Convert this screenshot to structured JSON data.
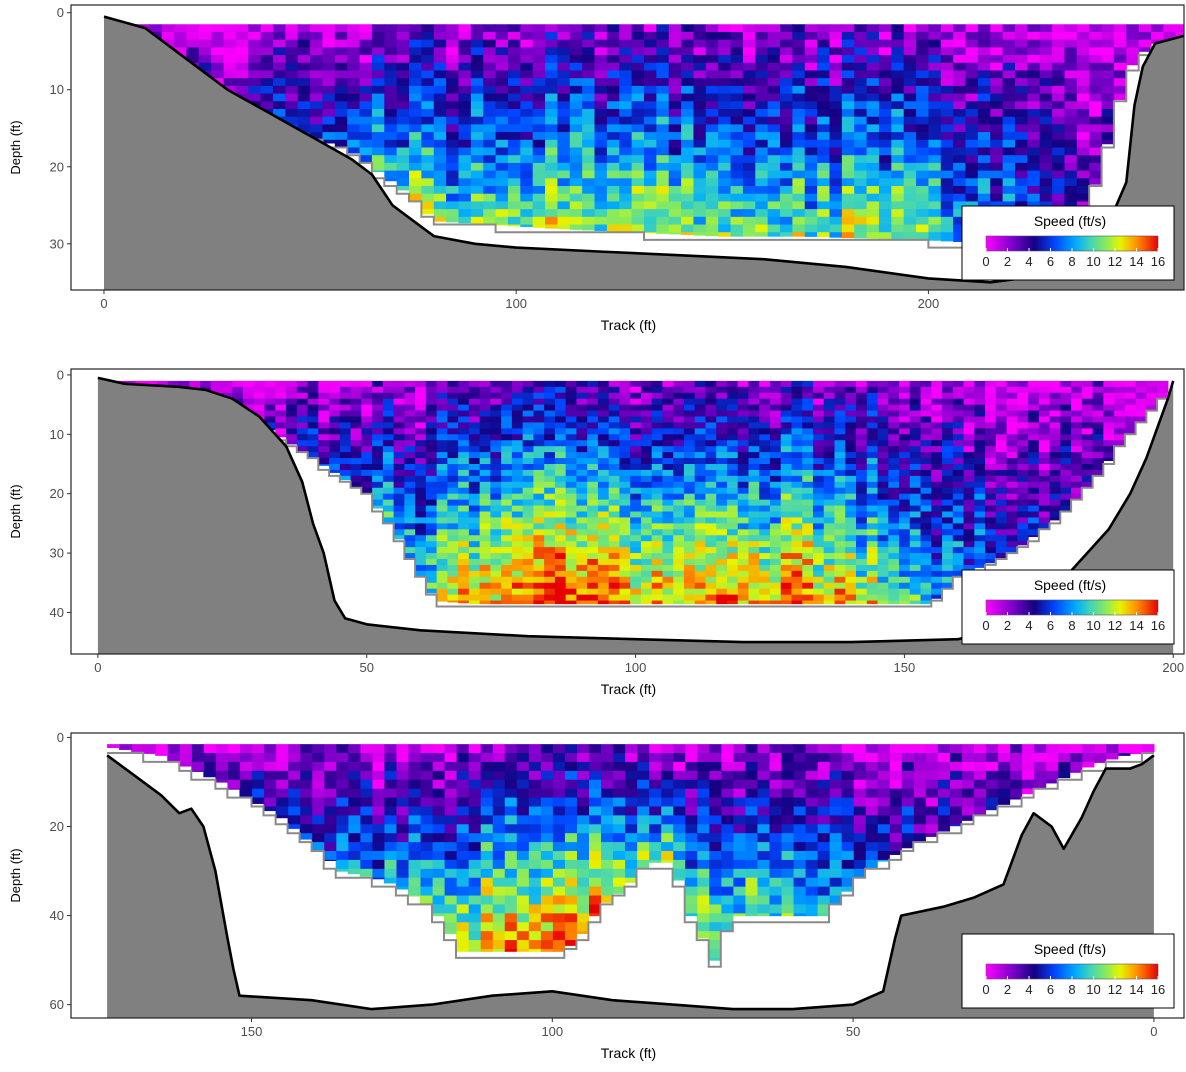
{
  "chart_data": [
    {
      "type": "heatmap",
      "xlabel": "Track (ft)",
      "ylabel": "Depth (ft)",
      "xlim": [
        -8,
        262
      ],
      "ylim": [
        36,
        -1
      ],
      "xticks": [
        0,
        100,
        200
      ],
      "yticks": [
        0,
        10,
        20,
        30
      ],
      "x_reversed": false,
      "legend": {
        "title": "Speed (ft/s)",
        "ticks": [
          0,
          2,
          4,
          6,
          8,
          10,
          12,
          14,
          16
        ],
        "tick_labels": [
          "0",
          "2",
          "4",
          "6",
          "8",
          "10",
          "12",
          "14",
          "16"
        ],
        "placement": "bottom-right"
      },
      "bed_profile": [
        [
          0,
          0.5
        ],
        [
          10,
          2
        ],
        [
          20,
          6
        ],
        [
          30,
          10
        ],
        [
          40,
          13
        ],
        [
          50,
          16
        ],
        [
          60,
          19
        ],
        [
          65,
          21
        ],
        [
          70,
          25
        ],
        [
          75,
          27
        ],
        [
          80,
          29
        ],
        [
          90,
          30
        ],
        [
          100,
          30.5
        ],
        [
          120,
          31
        ],
        [
          140,
          31.5
        ],
        [
          160,
          32
        ],
        [
          180,
          33
        ],
        [
          200,
          34.5
        ],
        [
          215,
          35
        ],
        [
          230,
          34
        ],
        [
          240,
          32
        ],
        [
          248,
          22
        ],
        [
          250,
          12
        ],
        [
          252,
          7
        ],
        [
          255,
          4
        ],
        [
          262,
          3
        ],
        [
          270,
          2
        ],
        [
          274,
          1.5
        ]
      ],
      "velocity_cells": {
        "cell_width_ft": 3,
        "cell_height_ft": 1,
        "x_range": [
          2,
          272
        ],
        "top_depth_ft": 1.5,
        "bottom_profile": [
          [
            0,
            1.5
          ],
          [
            10,
            3
          ],
          [
            20,
            7
          ],
          [
            30,
            11
          ],
          [
            40,
            14
          ],
          [
            50,
            16
          ],
          [
            60,
            18
          ],
          [
            65,
            20
          ],
          [
            70,
            22
          ],
          [
            75,
            24
          ],
          [
            80,
            27
          ],
          [
            95,
            27.5
          ],
          [
            110,
            28
          ],
          [
            150,
            29
          ],
          [
            170,
            29
          ],
          [
            200,
            29.5
          ],
          [
            220,
            30
          ],
          [
            230,
            28
          ],
          [
            238,
            26
          ],
          [
            242,
            20
          ],
          [
            246,
            12
          ],
          [
            250,
            6
          ],
          [
            255,
            4
          ],
          [
            265,
            3
          ],
          [
            272,
            2
          ]
        ],
        "speed_profile": [
          [
            0,
            0.5
          ],
          [
            10,
            0.8
          ],
          [
            20,
            1.2
          ],
          [
            30,
            2
          ],
          [
            40,
            3
          ],
          [
            50,
            4
          ],
          [
            60,
            5
          ],
          [
            70,
            6
          ],
          [
            80,
            6.5
          ],
          [
            90,
            6.5
          ],
          [
            100,
            6.8
          ],
          [
            110,
            6.8
          ],
          [
            130,
            7
          ],
          [
            150,
            6.8
          ],
          [
            170,
            6.5
          ],
          [
            190,
            7
          ],
          [
            200,
            6.5
          ],
          [
            210,
            5.5
          ],
          [
            220,
            4.5
          ],
          [
            230,
            3.5
          ],
          [
            240,
            2.5
          ],
          [
            250,
            1.5
          ],
          [
            260,
            1
          ],
          [
            272,
            0.5
          ]
        ],
        "depth_gain": 1.3
      }
    },
    {
      "type": "heatmap",
      "xlabel": "Track (ft)",
      "ylabel": "Depth (ft)",
      "xlim": [
        -5,
        202
      ],
      "ylim": [
        47,
        -1
      ],
      "xticks": [
        0,
        50,
        100,
        150,
        200
      ],
      "yticks": [
        0,
        10,
        20,
        30,
        40
      ],
      "x_reversed": false,
      "legend": {
        "title": "Speed (ft/s)",
        "ticks": [
          0,
          2,
          4,
          6,
          8,
          10,
          12,
          14,
          16
        ],
        "tick_labels": [
          "0",
          "2",
          "4",
          "6",
          "8",
          "10",
          "12",
          "14",
          "16"
        ],
        "placement": "bottom-right"
      },
      "bed_profile": [
        [
          0,
          0.5
        ],
        [
          5,
          1.5
        ],
        [
          15,
          2
        ],
        [
          20,
          2.5
        ],
        [
          25,
          4
        ],
        [
          30,
          7
        ],
        [
          35,
          12
        ],
        [
          38,
          18
        ],
        [
          40,
          25
        ],
        [
          42,
          30
        ],
        [
          44,
          38
        ],
        [
          46,
          41
        ],
        [
          50,
          42
        ],
        [
          60,
          43
        ],
        [
          80,
          44
        ],
        [
          100,
          44.5
        ],
        [
          120,
          45
        ],
        [
          140,
          45
        ],
        [
          160,
          44.5
        ],
        [
          170,
          42
        ],
        [
          180,
          34
        ],
        [
          185,
          29
        ],
        [
          188,
          26
        ],
        [
          192,
          20
        ],
        [
          195,
          14
        ],
        [
          197,
          9
        ],
        [
          199,
          4
        ],
        [
          200,
          1
        ]
      ],
      "velocity_cells": {
        "cell_width_ft": 2,
        "cell_height_ft": 1,
        "x_range": [
          1,
          199
        ],
        "top_depth_ft": 1,
        "bottom_profile": [
          [
            0,
            1
          ],
          [
            15,
            2.5
          ],
          [
            20,
            3.5
          ],
          [
            30,
            8
          ],
          [
            40,
            14
          ],
          [
            50,
            20
          ],
          [
            55,
            26
          ],
          [
            60,
            34
          ],
          [
            63,
            38
          ],
          [
            70,
            38.5
          ],
          [
            100,
            38.5
          ],
          [
            130,
            38.5
          ],
          [
            155,
            38.5
          ],
          [
            160,
            34
          ],
          [
            170,
            30
          ],
          [
            180,
            23
          ],
          [
            185,
            18
          ],
          [
            190,
            12
          ],
          [
            195,
            7
          ],
          [
            199,
            3
          ]
        ],
        "speed_profile": [
          [
            0,
            0.5
          ],
          [
            10,
            0.8
          ],
          [
            20,
            1.2
          ],
          [
            30,
            1.8
          ],
          [
            40,
            2.5
          ],
          [
            50,
            4
          ],
          [
            60,
            5.5
          ],
          [
            70,
            7
          ],
          [
            80,
            8
          ],
          [
            90,
            8.5
          ],
          [
            100,
            8
          ],
          [
            110,
            7.5
          ],
          [
            120,
            7.5
          ],
          [
            130,
            8
          ],
          [
            140,
            7
          ],
          [
            150,
            5.5
          ],
          [
            160,
            4
          ],
          [
            170,
            3
          ],
          [
            180,
            2
          ],
          [
            190,
            1.2
          ],
          [
            199,
            0.5
          ]
        ],
        "depth_gain": 1.5
      }
    },
    {
      "type": "heatmap",
      "xlabel": "Track (ft)",
      "ylabel": "Depth (ft)",
      "xlim": [
        180,
        -5
      ],
      "ylim": [
        63,
        -1
      ],
      "xticks": [
        150,
        100,
        50,
        0
      ],
      "yticks": [
        0,
        20,
        40,
        60
      ],
      "x_reversed": true,
      "legend": {
        "title": "Speed (ft/s)",
        "ticks": [
          0,
          2,
          4,
          6,
          8,
          10,
          12,
          14,
          16
        ],
        "tick_labels": [
          "0",
          "2",
          "4",
          "6",
          "8",
          "10",
          "12",
          "14",
          "16"
        ],
        "placement": "bottom-right"
      },
      "bed_profile": [
        [
          174,
          4
        ],
        [
          170,
          8
        ],
        [
          165,
          13
        ],
        [
          162,
          17
        ],
        [
          160,
          16
        ],
        [
          158,
          20
        ],
        [
          156,
          30
        ],
        [
          154,
          45
        ],
        [
          153,
          52
        ],
        [
          152,
          58
        ],
        [
          140,
          59
        ],
        [
          130,
          61
        ],
        [
          120,
          60
        ],
        [
          110,
          58
        ],
        [
          100,
          57
        ],
        [
          90,
          59
        ],
        [
          80,
          60
        ],
        [
          70,
          61
        ],
        [
          60,
          61
        ],
        [
          50,
          60
        ],
        [
          45,
          57
        ],
        [
          43,
          45
        ],
        [
          42,
          40
        ],
        [
          35,
          38
        ],
        [
          30,
          36
        ],
        [
          25,
          33
        ],
        [
          22,
          22
        ],
        [
          20,
          17
        ],
        [
          17,
          20
        ],
        [
          15,
          25
        ],
        [
          12,
          18
        ],
        [
          10,
          12
        ],
        [
          8,
          7
        ],
        [
          4,
          7
        ],
        [
          2,
          6
        ],
        [
          0,
          4
        ]
      ],
      "velocity_cells": {
        "cell_width_ft": 2,
        "cell_height_ft": 2,
        "x_range": [
          0,
          174
        ],
        "top_depth_ft": 1.5,
        "bottom_profile": [
          [
            174,
            2
          ],
          [
            165,
            4
          ],
          [
            155,
            10
          ],
          [
            145,
            18
          ],
          [
            140,
            24
          ],
          [
            135,
            30
          ],
          [
            128,
            32
          ],
          [
            125,
            34
          ],
          [
            120,
            38
          ],
          [
            115,
            48
          ],
          [
            100,
            48
          ],
          [
            98,
            48
          ],
          [
            95,
            44
          ],
          [
            92,
            38
          ],
          [
            88,
            34
          ],
          [
            84,
            28
          ],
          [
            80,
            28
          ],
          [
            77,
            40
          ],
          [
            73,
            50
          ],
          [
            70,
            40
          ],
          [
            60,
            40
          ],
          [
            55,
            40
          ],
          [
            52,
            36
          ],
          [
            48,
            30
          ],
          [
            40,
            24
          ],
          [
            30,
            18
          ],
          [
            20,
            12
          ],
          [
            10,
            6
          ],
          [
            5,
            4
          ],
          [
            0,
            3
          ]
        ],
        "speed_profile": [
          [
            174,
            0.5
          ],
          [
            165,
            1
          ],
          [
            150,
            2
          ],
          [
            140,
            3
          ],
          [
            130,
            4
          ],
          [
            120,
            6
          ],
          [
            110,
            7
          ],
          [
            100,
            8
          ],
          [
            95,
            8
          ],
          [
            90,
            6
          ],
          [
            85,
            6.5
          ],
          [
            80,
            5.5
          ],
          [
            75,
            6.5
          ],
          [
            70,
            6
          ],
          [
            60,
            5
          ],
          [
            50,
            3.5
          ],
          [
            40,
            2.5
          ],
          [
            30,
            2
          ],
          [
            20,
            1.5
          ],
          [
            10,
            1
          ],
          [
            0,
            0.5
          ]
        ],
        "depth_gain": 1.6
      }
    }
  ]
}
